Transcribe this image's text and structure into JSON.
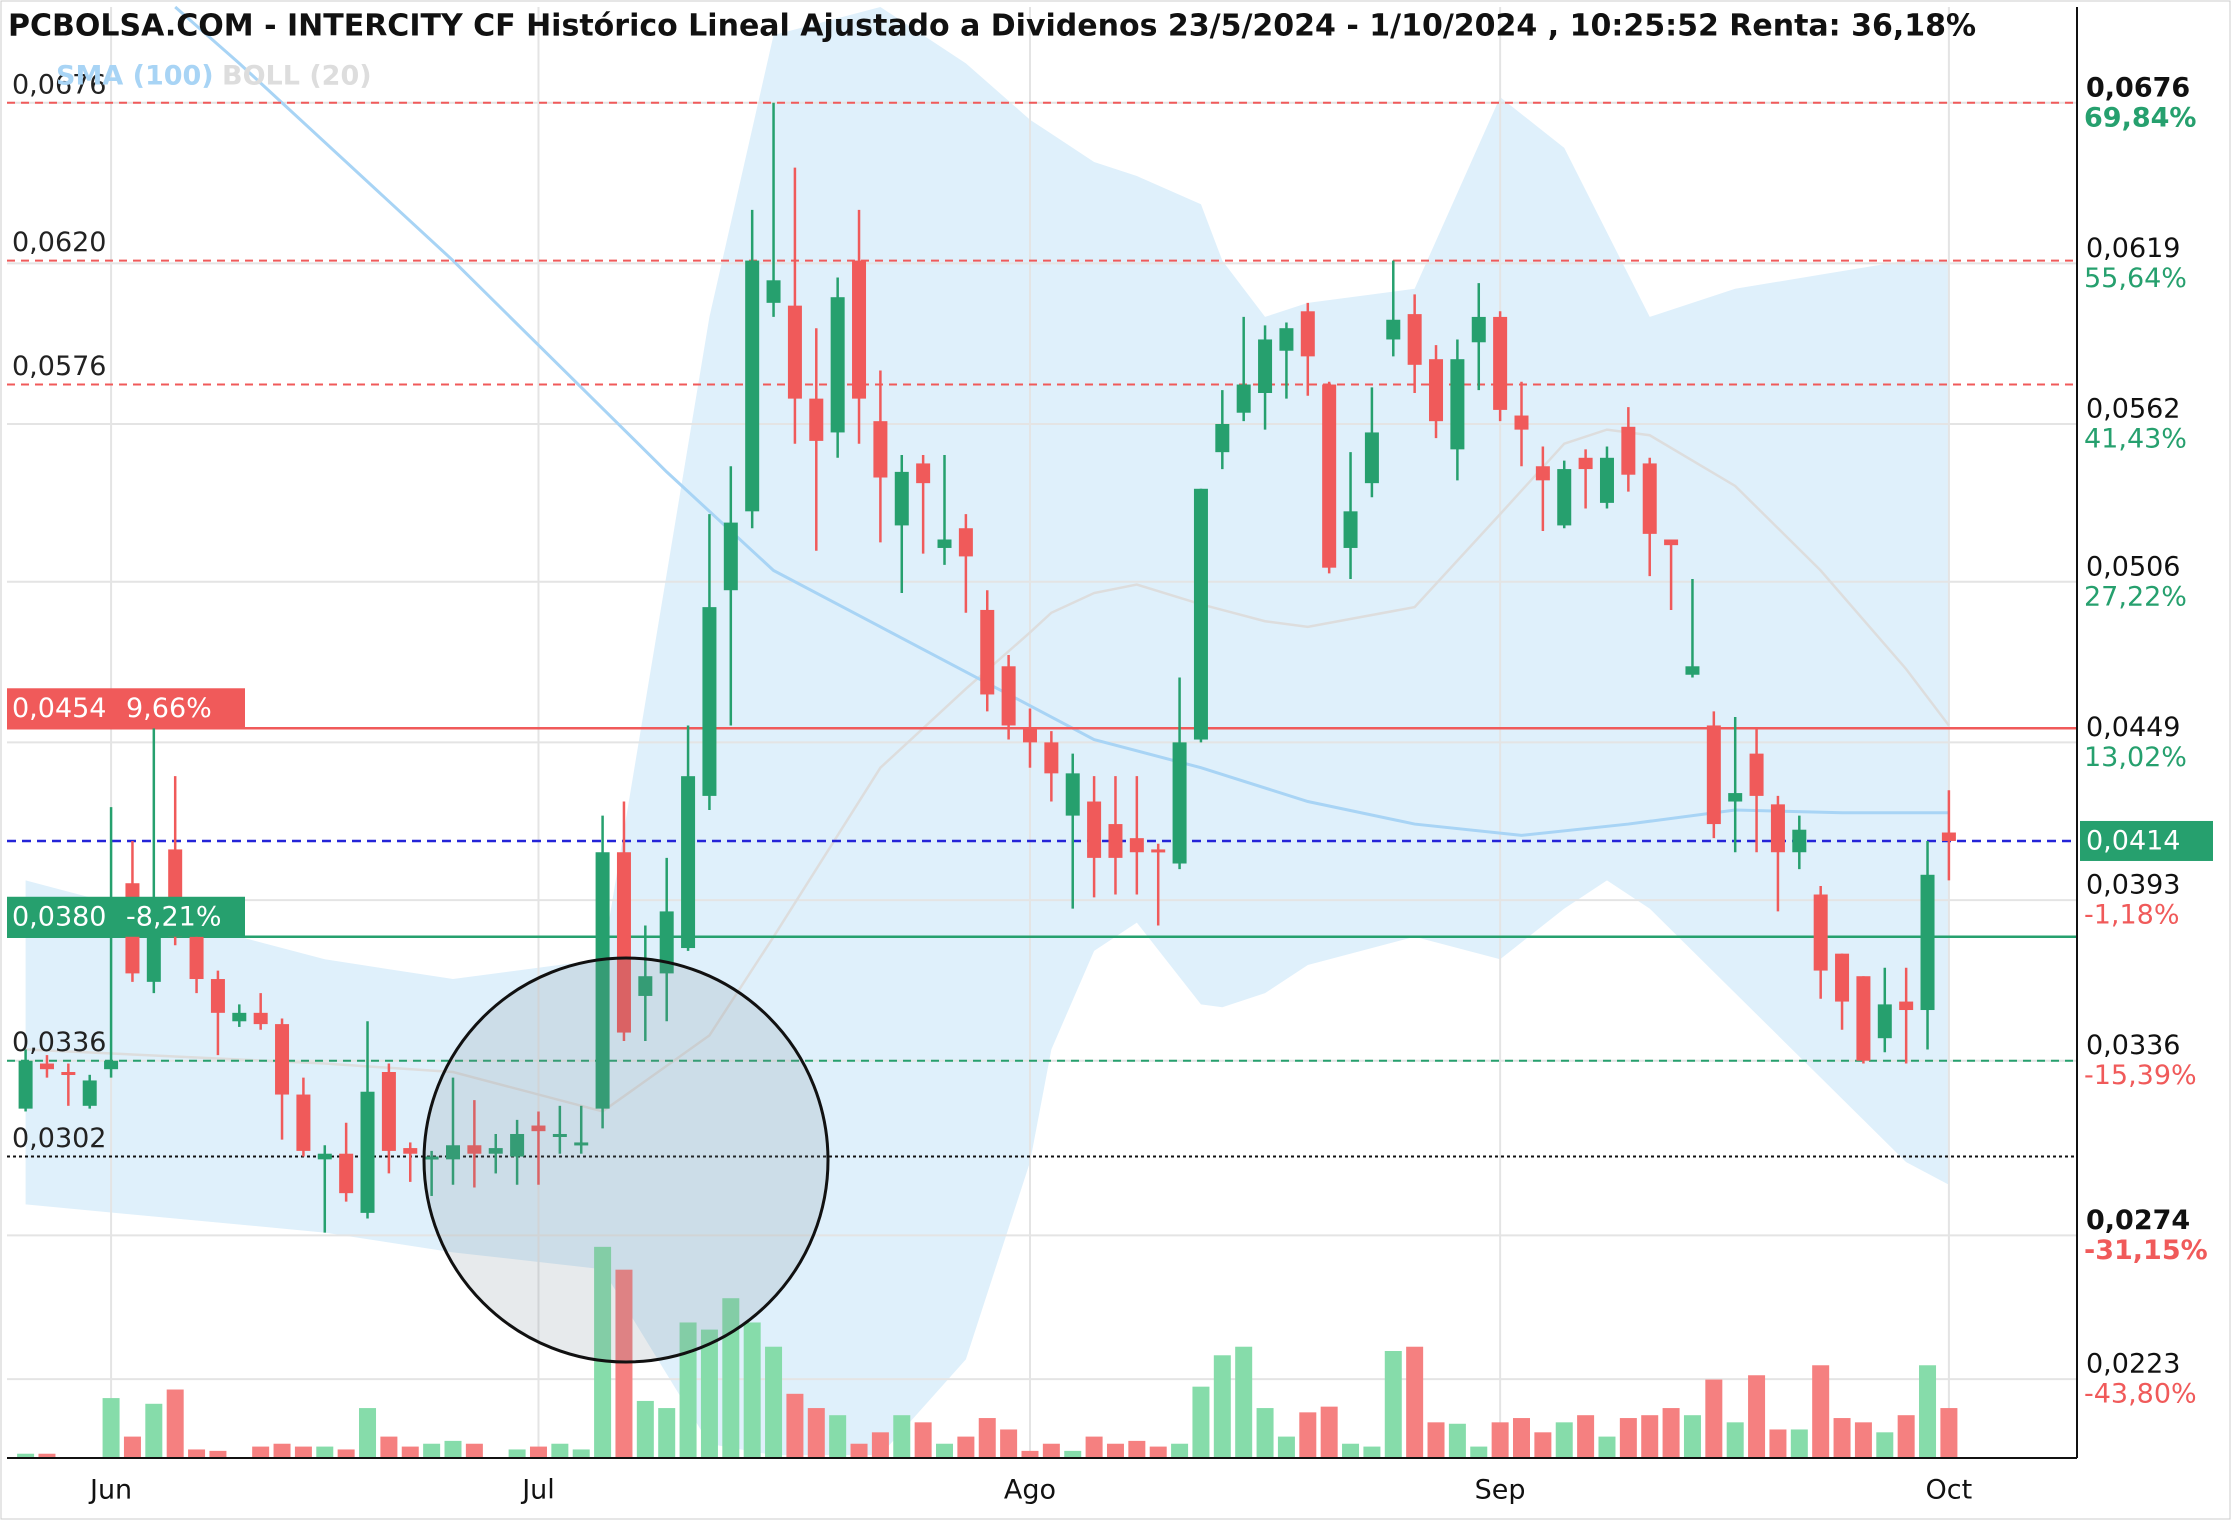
{
  "chart_data": {
    "type": "candlestick",
    "title": "PCBOLSA.COM - INTERCITY CF Histórico Lineal Ajustado a Dividenos 23/5/2024 - 1/10/2024 , 10:25:52 Renta: 36,18%",
    "categories": [
      null,
      null,
      null,
      null,
      "Jun",
      null,
      null,
      null,
      null,
      null,
      null,
      null,
      null,
      null,
      null,
      null,
      null,
      null,
      null,
      null,
      null,
      null,
      null,
      null,
      "Jul",
      null,
      null,
      null,
      null,
      null,
      null,
      null,
      null,
      null,
      null,
      null,
      null,
      null,
      null,
      null,
      null,
      null,
      null,
      null,
      null,
      null,
      null,
      "Ago",
      null,
      null,
      null,
      null,
      null,
      null,
      null,
      null,
      null,
      null,
      null,
      null,
      null,
      null,
      null,
      null,
      null,
      null,
      null,
      null,
      null,
      "Sep",
      null,
      null,
      null,
      null,
      null,
      null,
      null,
      null,
      null,
      null,
      null,
      null,
      null,
      null,
      null,
      null,
      null,
      null,
      null,
      null,
      "Oct"
    ],
    "open": [
      0.0319,
      0.0335,
      0.0332,
      0.032,
      0.0333,
      0.0399,
      0.0364,
      0.0411,
      0.038,
      0.0365,
      0.035,
      0.0353,
      0.0349,
      0.0324,
      0.0301,
      0.0303,
      0.0282,
      0.0332,
      0.0305,
      0.0301,
      0.0301,
      0.0306,
      0.0303,
      0.0302,
      0.0313,
      0.0309,
      0.0306,
      0.0319,
      0.041,
      0.0359,
      0.0367,
      0.0376,
      0.043,
      0.0503,
      0.0531,
      0.0605,
      0.0604,
      0.0571,
      0.0559,
      0.062,
      0.0563,
      0.0526,
      0.0548,
      0.0518,
      0.0525,
      0.0496,
      0.0476,
      0.0454,
      0.0449,
      0.0423,
      0.0428,
      0.042,
      0.0415,
      0.0411,
      0.0406,
      0.045,
      0.0552,
      0.0566,
      0.0573,
      0.0588,
      0.0602,
      0.0576,
      0.0518,
      0.0541,
      0.0592,
      0.0601,
      0.0585,
      0.0553,
      0.0591,
      0.06,
      0.0565,
      0.0547,
      0.0526,
      0.055,
      0.0534,
      0.0561,
      0.0548,
      0.0521,
      0.0473,
      0.0455,
      0.0428,
      0.0445,
      0.0427,
      0.041,
      0.0395,
      0.0374,
      0.0366,
      0.0344,
      0.0357,
      0.0354,
      0.0417
    ],
    "high": [
      0.034,
      0.0338,
      0.0335,
      0.0331,
      0.0426,
      0.0414,
      0.0454,
      0.0437,
      0.0384,
      0.0368,
      0.0356,
      0.036,
      0.0351,
      0.033,
      0.0306,
      0.0314,
      0.035,
      0.0335,
      0.0307,
      0.0304,
      0.033,
      0.0322,
      0.031,
      0.0315,
      0.0318,
      0.032,
      0.032,
      0.0423,
      0.0428,
      0.0384,
      0.0408,
      0.0455,
      0.053,
      0.0547,
      0.0638,
      0.0676,
      0.0653,
      0.0596,
      0.0614,
      0.0638,
      0.0581,
      0.0551,
      0.0551,
      0.0551,
      0.053,
      0.0503,
      0.048,
      0.0461,
      0.0453,
      0.0445,
      0.0437,
      0.0437,
      0.0437,
      0.0413,
      0.0472,
      0.0539,
      0.0574,
      0.06,
      0.0597,
      0.0598,
      0.0605,
      0.0577,
      0.0552,
      0.0575,
      0.062,
      0.0608,
      0.059,
      0.0592,
      0.0612,
      0.0602,
      0.0577,
      0.0554,
      0.0549,
      0.0553,
      0.0554,
      0.0568,
      0.055,
      0.0521,
      0.0507,
      0.046,
      0.0458,
      0.0454,
      0.043,
      0.0423,
      0.0398,
      0.0374,
      0.0366,
      0.0369,
      0.0369,
      0.0414,
      0.0432
    ],
    "low": [
      0.0318,
      0.033,
      0.032,
      0.0319,
      0.033,
      0.0364,
      0.036,
      0.0377,
      0.036,
      0.0338,
      0.0348,
      0.0347,
      0.0308,
      0.0302,
      0.0275,
      0.0286,
      0.028,
      0.0296,
      0.0293,
      0.0288,
      0.0292,
      0.0291,
      0.0296,
      0.0292,
      0.0292,
      0.0303,
      0.0303,
      0.0312,
      0.0343,
      0.0343,
      0.035,
      0.0375,
      0.0425,
      0.0455,
      0.0525,
      0.06,
      0.0555,
      0.0517,
      0.055,
      0.0555,
      0.052,
      0.0502,
      0.0516,
      0.0512,
      0.0495,
      0.046,
      0.045,
      0.044,
      0.0428,
      0.039,
      0.0394,
      0.0395,
      0.0395,
      0.0384,
      0.0404,
      0.0449,
      0.0546,
      0.0563,
      0.056,
      0.0571,
      0.0572,
      0.0509,
      0.0507,
      0.0536,
      0.0586,
      0.0573,
      0.0557,
      0.0542,
      0.0574,
      0.0563,
      0.0547,
      0.0524,
      0.0525,
      0.0532,
      0.0532,
      0.0538,
      0.0508,
      0.0496,
      0.0472,
      0.0415,
      0.041,
      0.041,
      0.0389,
      0.0404,
      0.0358,
      0.0347,
      0.0335,
      0.0339,
      0.0335,
      0.034,
      0.04
    ],
    "close": [
      0.0336,
      0.0333,
      0.0331,
      0.0329,
      0.0336,
      0.0367,
      0.0394,
      0.038,
      0.0365,
      0.0353,
      0.0353,
      0.0349,
      0.0324,
      0.0304,
      0.0303,
      0.0289,
      0.0325,
      0.0304,
      0.0303,
      0.0302,
      0.0306,
      0.0303,
      0.0305,
      0.031,
      0.0311,
      0.031,
      0.0307,
      0.041,
      0.0346,
      0.0366,
      0.0389,
      0.0437,
      0.0497,
      0.0527,
      0.062,
      0.0613,
      0.0571,
      0.0556,
      0.0607,
      0.0571,
      0.0543,
      0.0545,
      0.0541,
      0.0521,
      0.0515,
      0.0466,
      0.0455,
      0.0449,
      0.0438,
      0.0438,
      0.0408,
      0.0408,
      0.041,
      0.041,
      0.0449,
      0.0539,
      0.0562,
      0.0576,
      0.0592,
      0.0596,
      0.0586,
      0.0511,
      0.0531,
      0.0559,
      0.0599,
      0.0583,
      0.0563,
      0.0585,
      0.06,
      0.0567,
      0.056,
      0.0542,
      0.0546,
      0.0546,
      0.055,
      0.0544,
      0.0523,
      0.0519,
      0.0476,
      0.042,
      0.0431,
      0.043,
      0.041,
      0.0418,
      0.0368,
      0.0357,
      0.0336,
      0.0356,
      0.0354,
      0.0402,
      0.0414
    ],
    "volume": [
      3,
      3,
      0,
      0,
      42,
      15,
      38,
      48,
      6,
      5,
      0,
      8,
      10,
      8,
      8,
      6,
      35,
      15,
      8,
      10,
      12,
      10,
      0,
      6,
      8,
      10,
      6,
      148,
      132,
      40,
      35,
      95,
      90,
      112,
      95,
      78,
      45,
      35,
      30,
      10,
      18,
      30,
      25,
      10,
      15,
      28,
      20,
      5,
      10,
      5,
      15,
      10,
      12,
      8,
      10,
      50,
      72,
      78,
      35,
      15,
      32,
      36,
      10,
      8,
      75,
      78,
      25,
      24,
      8,
      25,
      28,
      18,
      25,
      30,
      15,
      28,
      30,
      35,
      30,
      55,
      25,
      58,
      20,
      20,
      65,
      28,
      25,
      18,
      30,
      65,
      35
    ],
    "vlim": [
      0,
      150
    ],
    "up_color": "#26a06e",
    "down_color": "#f05a5a",
    "vol_up_color": "#86dcaa",
    "vol_down_color": "#f58080",
    "sma": {
      "name": "SMA (100)",
      "color": "#a8d4f5",
      "x": [
        7,
        10,
        20,
        30,
        35,
        40,
        45,
        50,
        55,
        60,
        65,
        70,
        75,
        80,
        85,
        90
      ],
      "values": [
        0.071,
        0.069,
        0.062,
        0.0545,
        0.051,
        0.049,
        0.047,
        0.045,
        0.044,
        0.0428,
        0.042,
        0.0416,
        0.042,
        0.0425,
        0.0424,
        0.0424
      ]
    },
    "boll": {
      "name": "BOLL (20)",
      "color": "#dddddd",
      "fill": "#dff0fb",
      "x": [
        0,
        14,
        20,
        27,
        32,
        35,
        40,
        44,
        47,
        48,
        50,
        52,
        55,
        56,
        58,
        60,
        65,
        69,
        72,
        74,
        76,
        80,
        84,
        88,
        90
      ],
      "upper": [
        0.04,
        0.0372,
        0.0365,
        0.0372,
        0.06,
        0.07,
        0.071,
        0.069,
        0.067,
        0.0665,
        0.0655,
        0.065,
        0.064,
        0.062,
        0.06,
        0.0605,
        0.061,
        0.0678,
        0.066,
        0.063,
        0.06,
        0.061,
        0.0615,
        0.062,
        0.062
      ],
      "mid": [
        0.034,
        0.0335,
        0.0332,
        0.0318,
        0.0345,
        0.038,
        0.044,
        0.0468,
        0.0488,
        0.0495,
        0.0502,
        0.0505,
        0.0498,
        0.0496,
        0.0492,
        0.049,
        0.0497,
        0.053,
        0.0555,
        0.056,
        0.0558,
        0.054,
        0.051,
        0.0475,
        0.0455
      ],
      "lower": [
        0.0285,
        0.0275,
        0.0268,
        0.0262,
        0.02,
        0.0196,
        0.0196,
        0.023,
        0.03,
        0.034,
        0.0375,
        0.0385,
        0.0356,
        0.0355,
        0.036,
        0.037,
        0.038,
        0.0372,
        0.039,
        0.04,
        0.039,
        0.036,
        0.033,
        0.03,
        0.0292
      ]
    },
    "ylim": [
      0.0195,
      0.071
    ],
    "yticks": [
      {
        "value": 0.0676,
        "label": "0,0676"
      },
      {
        "value": 0.0619,
        "label": "0,0619"
      },
      {
        "value": 0.0562,
        "label": "0,0562"
      },
      {
        "value": 0.0506,
        "label": "0,0506"
      },
      {
        "value": 0.0449,
        "label": "0,0449"
      },
      {
        "value": 0.0393,
        "label": "0,0393"
      },
      {
        "value": 0.0336,
        "label": "0,0336"
      },
      {
        "value": 0.0274,
        "label": "0,0274"
      },
      {
        "value": 0.0223,
        "label": "0,0223"
      }
    ],
    "ytick_changes": [
      "69,84%",
      "55,64%",
      "41,43%",
      "27,22%",
      "13,02%",
      "-1,18%",
      "-15,39%",
      "-31,15%",
      "-43,80%"
    ],
    "ytick_bold": [
      0,
      7
    ],
    "grid": true,
    "levels": [
      {
        "value": 0.0676,
        "label": "0,0676",
        "color": "#f05a5a",
        "dash": "8,6"
      },
      {
        "value": 0.062,
        "label": "0,0620",
        "color": "#f05a5a",
        "dash": "8,6"
      },
      {
        "value": 0.0576,
        "label": "0,0576",
        "color": "#f05a5a",
        "dash": "8,6"
      },
      {
        "value": 0.0336,
        "label": "0,0336",
        "color": "#26a06e",
        "dash": "8,6"
      },
      {
        "value": 0.0302,
        "label": "0,0302",
        "color": "#111111",
        "dash": "3,3"
      }
    ],
    "price_lines": [
      {
        "value": 0.0454,
        "label": "0,0454",
        "change": "9,66%",
        "color": "#f05a5a"
      },
      {
        "value": 0.038,
        "label": "0,0380",
        "change": "-8,21%",
        "color": "#26a06e"
      }
    ],
    "last": {
      "value": 0.0414,
      "label": "0,0414",
      "color": "#2424d8",
      "box": "#26a06e"
    }
  }
}
